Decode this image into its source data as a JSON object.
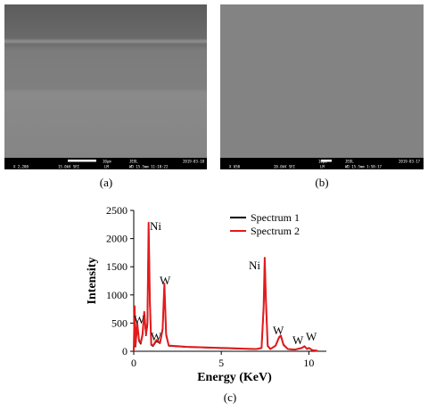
{
  "panels": [
    {
      "info": [
        "10μm",
        "JEOL",
        "2019-03-18",
        "X 2,200",
        "15.0kV SEI",
        "LM",
        "WD 15.5mm 11:10:22"
      ],
      "caption": "(a)"
    },
    {
      "info": [
        "10μm",
        "JEOL",
        "2019-03-17",
        "X 650",
        "20.0kV SEI",
        "LM",
        "WD 15.5mm 1:58:17"
      ],
      "caption": "(b)"
    }
  ],
  "chart_data": {
    "type": "line",
    "caption": "(c)",
    "xlabel": "Energy (KeV)",
    "ylabel": "Intensity",
    "x": [
      0,
      0.05,
      0.1,
      0.2,
      0.3,
      0.4,
      0.5,
      0.6,
      0.7,
      0.78,
      0.85,
      0.92,
      1,
      1.1,
      1.3,
      1.5,
      1.65,
      1.75,
      1.85,
      2,
      2.5,
      3,
      4,
      5,
      6,
      7,
      7.3,
      7.42,
      7.48,
      7.55,
      7.65,
      7.8,
      8.1,
      8.3,
      8.4,
      8.55,
      8.8,
      9.2,
      9.6,
      9.75,
      9.9,
      10,
      10.2,
      10.5
    ],
    "series": [
      {
        "name": "Spectrum 1",
        "color": "#000000",
        "values": [
          0,
          700,
          80,
          450,
          180,
          130,
          280,
          650,
          280,
          450,
          2200,
          850,
          110,
          90,
          180,
          140,
          380,
          1150,
          280,
          95,
          85,
          75,
          65,
          55,
          45,
          38,
          55,
          760,
          1600,
          850,
          90,
          38,
          95,
          240,
          270,
          110,
          38,
          28,
          55,
          85,
          38,
          55,
          18,
          8
        ]
      },
      {
        "name": "Spectrum 2",
        "color": "#e31a1c",
        "values": [
          0,
          800,
          100,
          500,
          200,
          150,
          300,
          700,
          300,
          500,
          2280,
          900,
          120,
          100,
          200,
          150,
          400,
          1200,
          300,
          100,
          90,
          80,
          70,
          60,
          50,
          40,
          60,
          800,
          1660,
          900,
          100,
          40,
          100,
          250,
          280,
          120,
          40,
          30,
          60,
          90,
          40,
          60,
          20,
          10
        ]
      }
    ],
    "annotations": [
      "Ni",
      "W",
      "W",
      "W",
      "Ni",
      "W",
      "W",
      "W"
    ],
    "xlim": [
      0,
      11
    ],
    "xticks": [
      0,
      5,
      10
    ],
    "ylim": [
      0,
      2500
    ],
    "yticks": [
      0,
      500,
      1000,
      1500,
      2000,
      2500
    ],
    "legend": "upper right"
  }
}
